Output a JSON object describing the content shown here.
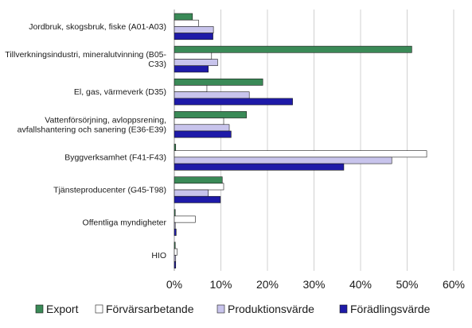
{
  "chart_data": {
    "type": "bar",
    "orientation": "horizontal",
    "title": "",
    "xlabel": "",
    "ylabel": "",
    "xlim": [
      0,
      60
    ],
    "x_ticks": [
      0,
      10,
      20,
      30,
      40,
      50,
      60
    ],
    "x_tick_suffix": "%",
    "grid": true,
    "legend_position": "bottom",
    "categories": [
      [
        "Jordbruk, skogsbruk, fiske (A01-A03)"
      ],
      [
        "Tillverkningsindustri, mineralutvinning (B05-",
        "C33)"
      ],
      [
        "El, gas, värmeverk (D35)"
      ],
      [
        "Vattenförsörjning, avloppsrening,",
        "avfallshantering och sanering (E36-E39)"
      ],
      [
        "Byggverksamhet (F41-F43)"
      ],
      [
        "Tjänsteproducenter (G45-T98)"
      ],
      [
        "Offentliga myndigheter"
      ],
      [
        "HIO"
      ]
    ],
    "series": [
      {
        "name": "Export",
        "color": "#3a8a57",
        "values": [
          3.9,
          51.0,
          19.0,
          15.5,
          0.3,
          10.3,
          0.2,
          0.2
        ]
      },
      {
        "name": "Förvärsarbetande",
        "color": "#ffffff",
        "values": [
          5.2,
          8.0,
          7.0,
          10.6,
          54.2,
          10.6,
          4.5,
          0.6
        ]
      },
      {
        "name": "Produktionsvärde",
        "color": "#c8c4ec",
        "values": [
          8.4,
          9.3,
          16.1,
          11.8,
          46.7,
          7.3,
          0.2,
          0.3
        ]
      },
      {
        "name": "Förädlingsvärde",
        "color": "#1e1aa8",
        "values": [
          8.3,
          7.3,
          25.4,
          12.2,
          36.4,
          9.9,
          0.4,
          0.3
        ]
      }
    ]
  }
}
